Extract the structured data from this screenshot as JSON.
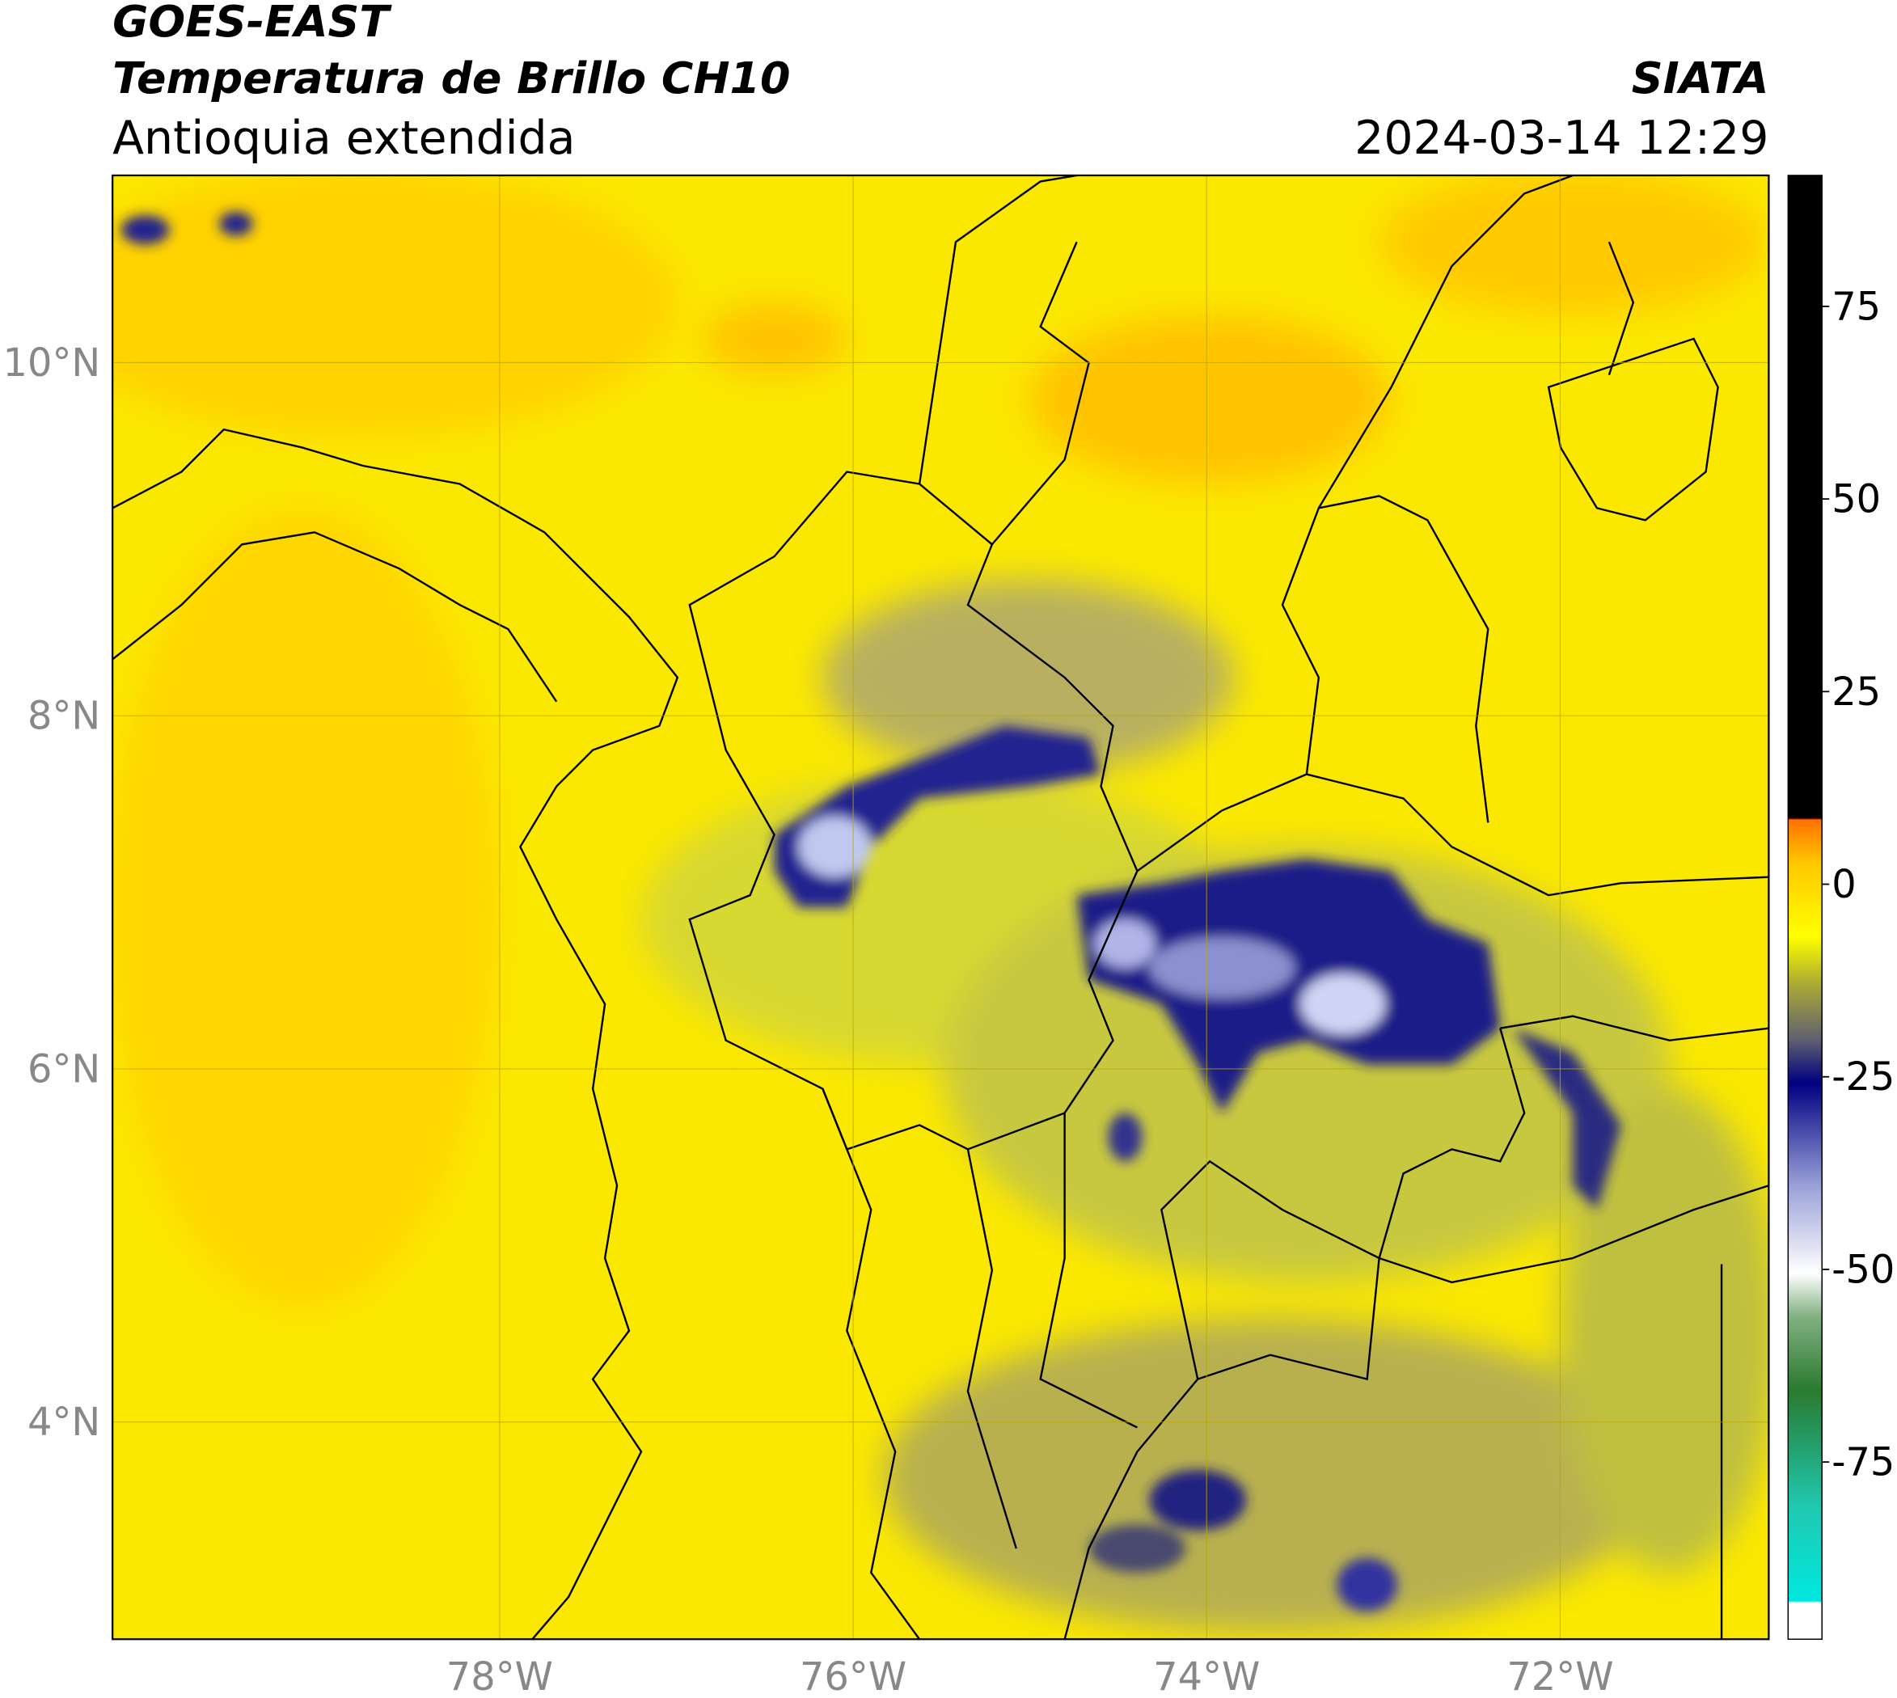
{
  "header": {
    "title_line1": "GOES-EAST",
    "title_line2": "Temperatura de Brillo CH10",
    "subtitle": "Antioquia extendida",
    "source": "SIATA",
    "datetime": "2024-03-14 12:29"
  },
  "map": {
    "xlim": [
      -80.19,
      -70.82
    ],
    "ylim": [
      2.77,
      11.06
    ],
    "xticks": [
      {
        "value": -78,
        "label": "78°W"
      },
      {
        "value": -76,
        "label": "76°W"
      },
      {
        "value": -74,
        "label": "74°W"
      },
      {
        "value": -72,
        "label": "72°W"
      }
    ],
    "yticks": [
      {
        "value": 10,
        "label": "10°N"
      },
      {
        "value": 8,
        "label": "8°N"
      },
      {
        "value": 6,
        "label": "6°N"
      },
      {
        "value": 4,
        "label": "4°N"
      }
    ]
  },
  "colorbar": {
    "lim": [
      -98,
      92
    ],
    "ticks": [
      75,
      50,
      25,
      0,
      -25,
      -50,
      -75
    ]
  }
}
